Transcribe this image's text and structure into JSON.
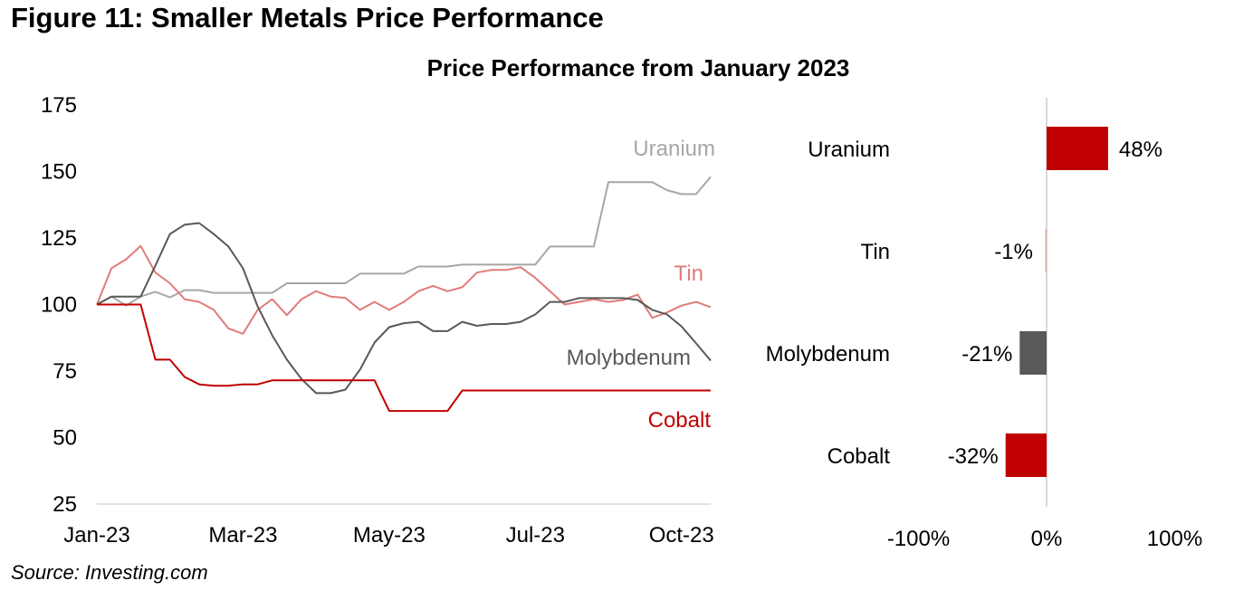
{
  "figure_title": "Figure 11: Smaller Metals Price Performance",
  "source": "Source: Investing.com",
  "chart_data": [
    {
      "type": "line",
      "title": "Price Performance from January 2023",
      "ylim": [
        25,
        175
      ],
      "yticks": [
        "25",
        "50",
        "75",
        "100",
        "125",
        "150",
        "175"
      ],
      "ytick_values": [
        25,
        50,
        75,
        100,
        125,
        150,
        175
      ],
      "xticks": [
        "Jan-23",
        "Mar-23",
        "May-23",
        "Jul-23",
        "Oct-23"
      ],
      "xtick_index": [
        0,
        10,
        20,
        30,
        40
      ],
      "n_points": 43,
      "series": [
        {
          "name": "Uranium",
          "color": "#a6a6a6",
          "values": [
            100,
            103,
            99.6,
            103,
            104.8,
            102.7,
            105.4,
            105.4,
            104.4,
            104.4,
            104.4,
            104.4,
            104.4,
            108,
            108,
            108,
            108,
            108,
            111.6,
            111.6,
            111.6,
            111.6,
            114.3,
            114.3,
            114.3,
            115,
            115,
            115,
            115,
            115,
            115,
            121.8,
            121.8,
            121.8,
            121.8,
            146,
            146,
            146,
            146,
            143,
            141.5,
            141.5,
            148
          ]
        },
        {
          "name": "Tin",
          "color": "#e07b7b",
          "values": [
            100,
            113.6,
            117,
            122,
            112,
            108,
            102,
            101,
            98,
            91,
            89,
            98,
            102,
            96,
            102,
            105,
            103,
            102.5,
            98,
            101,
            98,
            101,
            105,
            107,
            105,
            106.5,
            112,
            113,
            113,
            114,
            110,
            105,
            100,
            101,
            102,
            101,
            101.7,
            103.7,
            95,
            97,
            99.6,
            101,
            99
          ]
        },
        {
          "name": "Molybdenum",
          "color": "#595959",
          "values": [
            100,
            103,
            103,
            103,
            114.6,
            126.5,
            130,
            130.6,
            126.5,
            121.8,
            113.6,
            99.3,
            88.4,
            79.3,
            72,
            66.7,
            66.7,
            68,
            75.5,
            85.7,
            91.5,
            93,
            93.5,
            90,
            90,
            93.5,
            92,
            92.7,
            92.7,
            93.5,
            96.3,
            101,
            101,
            102.4,
            102.4,
            102.4,
            102.4,
            101.7,
            98,
            96.3,
            91.8,
            85.4,
            78.9
          ]
        },
        {
          "name": "Cobalt",
          "color": "#c00000",
          "values": [
            100,
            100,
            100,
            100,
            79.3,
            79.3,
            72.8,
            70,
            69.5,
            69.5,
            70,
            70,
            71.5,
            71.5,
            71.5,
            71.5,
            71.5,
            71.5,
            71.5,
            71.5,
            60,
            60,
            60,
            60,
            60,
            67.7,
            67.7,
            67.7,
            67.7,
            67.7,
            67.7,
            67.7,
            67.7,
            67.7,
            67.7,
            67.7,
            67.7,
            67.7,
            67.7,
            67.7,
            67.7,
            67.7,
            67.7
          ]
        }
      ]
    },
    {
      "type": "bar",
      "orientation": "horizontal",
      "categories": [
        "Uranium",
        "Tin",
        "Molybdenum",
        "Cobalt"
      ],
      "values": [
        48,
        -1,
        -21,
        -32
      ],
      "value_labels": [
        "48%",
        "-1%",
        "-21%",
        "-32%"
      ],
      "colors": [
        "#c00000",
        "#e8a0a0",
        "#595959",
        "#c00000"
      ],
      "xlim": [
        -100,
        100
      ],
      "xticks": [
        "-100%",
        "0%",
        "100%"
      ],
      "xtick_values": [
        -100,
        0,
        100
      ]
    }
  ]
}
